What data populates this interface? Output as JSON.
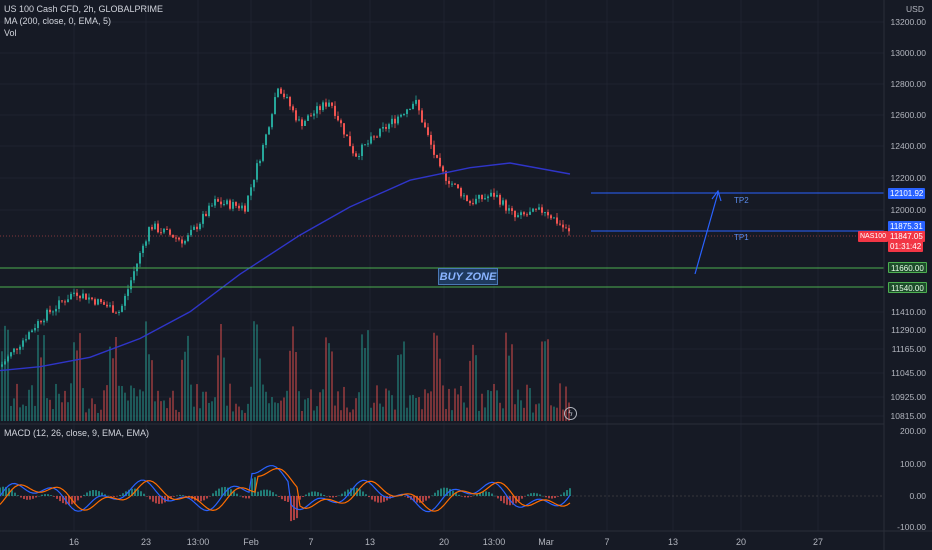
{
  "header": {
    "symbol_line": "US 100 Cash CFD, 2h, GLOBALPRIME",
    "ma_line": "MA (200, close, 0, EMA, 5)",
    "vol_line": "Vol",
    "macd_line": "MACD (12, 26, close, 9, EMA, EMA)",
    "currency": "USD"
  },
  "price_axis": [
    "13200.00",
    "13000.00",
    "12800.00",
    "12600.00",
    "12400.00",
    "12200.00",
    "12000.00",
    "11410.00",
    "11290.00",
    "11165.00",
    "11045.00",
    "10925.00",
    "10815.00"
  ],
  "macd_axis": [
    "200.00",
    "100.00",
    "0.00",
    "-100.00"
  ],
  "date_axis": [
    "16",
    "23",
    "13:00",
    "Feb",
    "7",
    "13",
    "20",
    "13:00",
    "Mar",
    "7",
    "13",
    "20",
    "27"
  ],
  "price_tags": {
    "tp2_value": "12101.92",
    "tp1_value": "11875.31",
    "symbol_tag": "NAS100",
    "last_price": "11847.05",
    "countdown": "01:31:42",
    "zone_top": "11660.00",
    "zone_bottom": "11540.00"
  },
  "annotations": {
    "buy_zone": "BUY ZONE",
    "tp1": "TP1",
    "tp2": "TP2"
  },
  "colors": {
    "background": "#161a25",
    "up": "#26a69a",
    "down": "#ef5350",
    "ma": "#2f35c9",
    "macd": "#2962ff",
    "signal": "#ff6d00",
    "zone": "#4caf50",
    "tp_line": "#2962ff"
  },
  "chart_data": {
    "type": "line",
    "series": [
      {
        "name": "MA (200, close, 0, EMA, 5)",
        "values": [
          10975,
          11000,
          11060,
          11180,
          11350,
          11590,
          11840,
          12020,
          12190,
          12270,
          12300,
          12230
        ]
      },
      {
        "name": "US 100 Cash CFD",
        "values": [
          11000,
          11450,
          11520,
          12000,
          12680,
          12500,
          12680,
          12350,
          11970,
          11980,
          11990,
          11847
        ]
      }
    ],
    "ylim": [
      10800,
      13250
    ]
  }
}
